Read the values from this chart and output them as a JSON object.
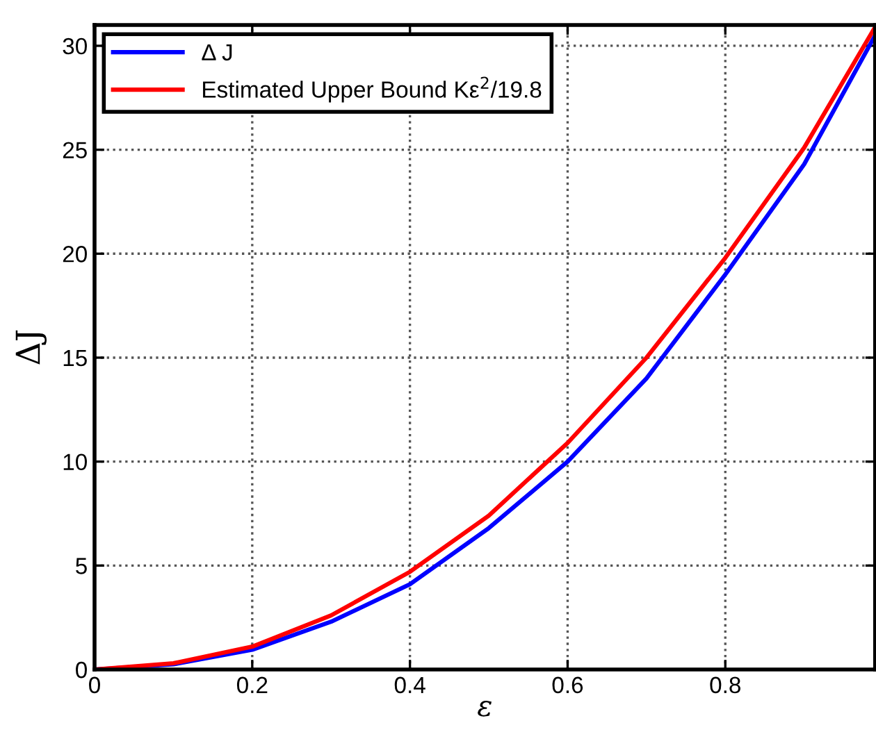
{
  "chart_data": {
    "type": "line",
    "xlabel": "ε",
    "ylabel": "ΔJ",
    "xlim": [
      0,
      0.99
    ],
    "ylim": [
      0,
      31
    ],
    "xticks": [
      0,
      0.2,
      0.4,
      0.6,
      0.8
    ],
    "yticks": [
      0,
      5,
      10,
      15,
      20,
      25,
      30
    ],
    "grid": true,
    "legend": "top left",
    "line_style": "solid",
    "marker": "none",
    "x": [
      0,
      0.1,
      0.2,
      0.3,
      0.4,
      0.5,
      0.6,
      0.7,
      0.8,
      0.9,
      0.99
    ],
    "series": [
      {
        "name": "Δ J",
        "color": "#0000ff",
        "values": [
          0,
          0.25,
          0.95,
          2.3,
          4.1,
          6.8,
          10.0,
          14.0,
          19.0,
          24.3,
          30.5
        ]
      },
      {
        "name": "Estimated Upper Bound Kε$^{2}$/19.8",
        "color": "#ff0000",
        "values": [
          0,
          0.3,
          1.1,
          2.6,
          4.7,
          7.4,
          10.9,
          15.0,
          19.8,
          25.1,
          30.9
        ]
      }
    ]
  }
}
